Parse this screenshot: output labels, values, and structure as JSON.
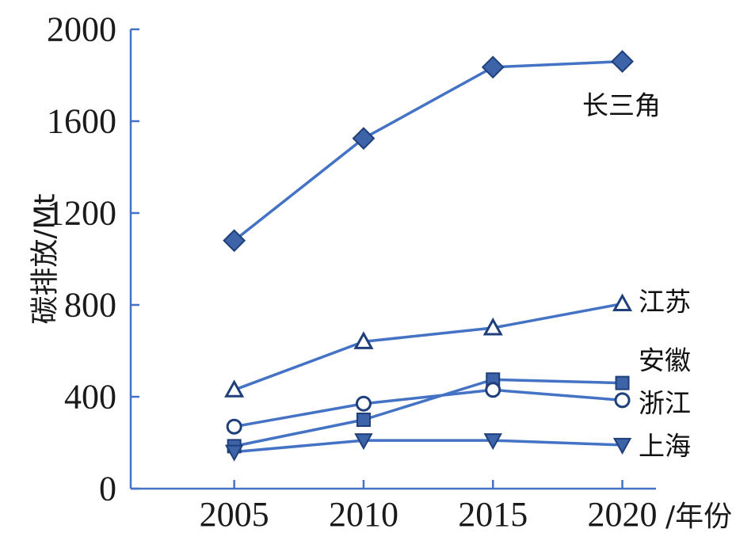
{
  "chart_data": {
    "type": "line",
    "ylabel": "碳排放/Mt",
    "xlabel": "/年份",
    "x": [
      2005,
      2010,
      2015,
      2020
    ],
    "xlim": [
      2001,
      2021.3
    ],
    "ylim": [
      0,
      2000
    ],
    "yticks": [
      0,
      400,
      800,
      1200,
      1600,
      2000
    ],
    "grid": false,
    "line_color": "#4472c4",
    "marker_fill": "#3d63a8",
    "marker_stroke": "#1f3f7a",
    "series": [
      {
        "name": "长三角",
        "marker": "diamond",
        "values": [
          1080,
          1525,
          1835,
          1860
        ]
      },
      {
        "name": "江苏",
        "marker": "triangle-up",
        "values": [
          430,
          640,
          700,
          805
        ]
      },
      {
        "name": "安徽",
        "marker": "square",
        "values": [
          185,
          300,
          475,
          460
        ]
      },
      {
        "name": "浙江",
        "marker": "circle",
        "values": [
          270,
          370,
          430,
          385
        ]
      },
      {
        "name": "上海",
        "marker": "triangle-down",
        "values": [
          160,
          210,
          210,
          190
        ]
      }
    ]
  }
}
